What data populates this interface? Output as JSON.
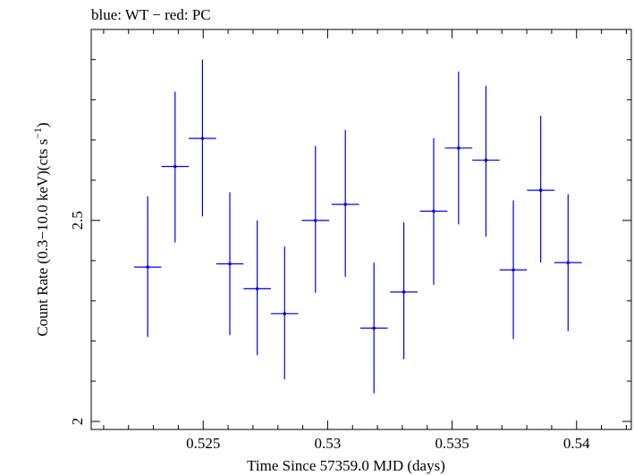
{
  "chart_data": {
    "type": "scatter",
    "title": "blue: WT − red: PC",
    "xlabel": "Time Since 57359.0 MJD (days)",
    "ylabel_main": "Count Rate (0.3−10.0 keV)(cts s",
    "ylabel_exp": "−1",
    "ylabel_close": ")",
    "xlim": [
      0.5205,
      0.5422
    ],
    "ylim": [
      1.98,
      2.975
    ],
    "x_ticks": [
      {
        "value": 0.525,
        "label": "0.525"
      },
      {
        "value": 0.53,
        "label": "0.53"
      },
      {
        "value": 0.535,
        "label": "0.535"
      },
      {
        "value": 0.54,
        "label": "0.54"
      }
    ],
    "y_ticks": [
      {
        "value": 2.0,
        "label": "2"
      },
      {
        "value": 2.5,
        "label": "2.5"
      }
    ],
    "series": [
      {
        "color": "#0000ee",
        "points": [
          {
            "x": 0.52277,
            "xerr": 0.00055,
            "y": 2.384,
            "ylo": 2.21,
            "yhi": 2.56
          },
          {
            "x": 0.52387,
            "xerr": 0.00055,
            "y": 2.634,
            "ylo": 2.445,
            "yhi": 2.82
          },
          {
            "x": 0.52497,
            "xerr": 0.00055,
            "y": 2.704,
            "ylo": 2.51,
            "yhi": 2.9
          },
          {
            "x": 0.52607,
            "xerr": 0.00055,
            "y": 2.392,
            "ylo": 2.215,
            "yhi": 2.57
          },
          {
            "x": 0.52717,
            "xerr": 0.00055,
            "y": 2.33,
            "ylo": 2.165,
            "yhi": 2.5
          },
          {
            "x": 0.52827,
            "xerr": 0.00055,
            "y": 2.268,
            "ylo": 2.105,
            "yhi": 2.435
          },
          {
            "x": 0.52951,
            "xerr": 0.00055,
            "y": 2.5,
            "ylo": 2.32,
            "yhi": 2.685
          },
          {
            "x": 0.53071,
            "xerr": 0.00055,
            "y": 2.54,
            "ylo": 2.36,
            "yhi": 2.725
          },
          {
            "x": 0.53186,
            "xerr": 0.00055,
            "y": 2.232,
            "ylo": 2.07,
            "yhi": 2.395
          },
          {
            "x": 0.53306,
            "xerr": 0.00055,
            "y": 2.322,
            "ylo": 2.155,
            "yhi": 2.495
          },
          {
            "x": 0.53426,
            "xerr": 0.00055,
            "y": 2.523,
            "ylo": 2.34,
            "yhi": 2.705
          },
          {
            "x": 0.53526,
            "xerr": 0.00055,
            "y": 2.68,
            "ylo": 2.49,
            "yhi": 2.87
          },
          {
            "x": 0.53636,
            "xerr": 0.00055,
            "y": 2.65,
            "ylo": 2.46,
            "yhi": 2.835
          },
          {
            "x": 0.53746,
            "xerr": 0.00055,
            "y": 2.377,
            "ylo": 2.205,
            "yhi": 2.55
          },
          {
            "x": 0.53856,
            "xerr": 0.00055,
            "y": 2.575,
            "ylo": 2.395,
            "yhi": 2.76
          },
          {
            "x": 0.53966,
            "xerr": 0.00055,
            "y": 2.395,
            "ylo": 2.225,
            "yhi": 2.565
          }
        ]
      }
    ]
  }
}
